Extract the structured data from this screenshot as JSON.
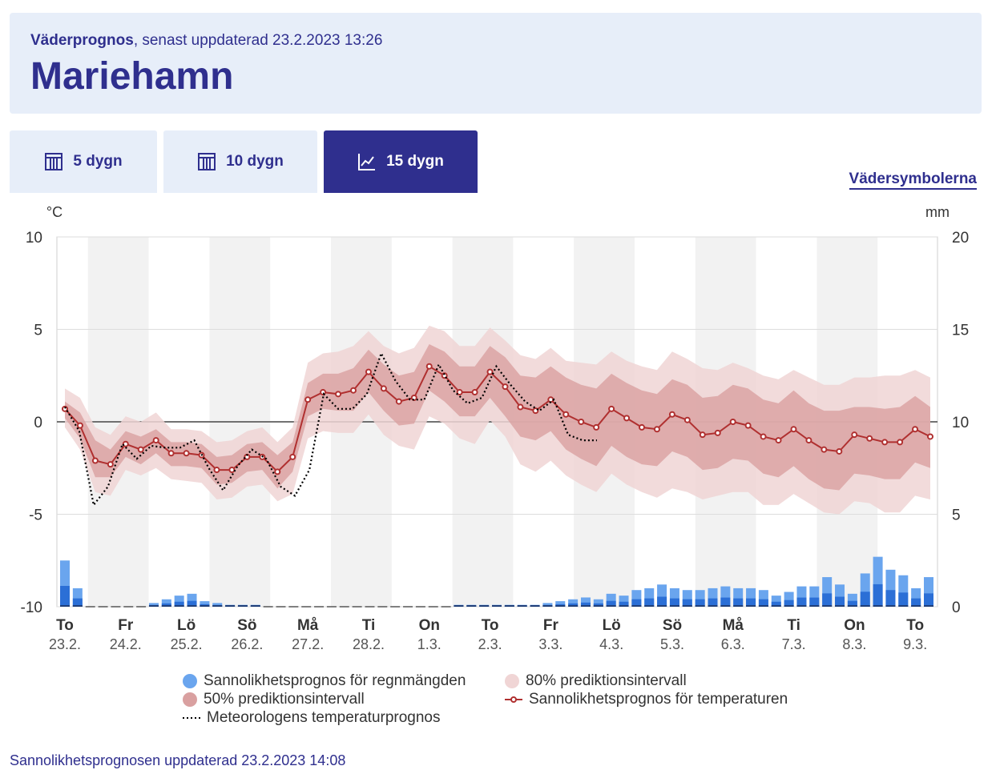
{
  "header": {
    "subtitle_bold": "Väderprognos",
    "subtitle_rest": ", senast uppdaterad 23.2.2023 13:26",
    "title": "Mariehamn"
  },
  "tabs": [
    {
      "label": "5 dygn",
      "icon": "calendar-icon",
      "active": false
    },
    {
      "label": "10 dygn",
      "icon": "calendar-icon",
      "active": false
    },
    {
      "label": "15 dygn",
      "icon": "line-chart-icon",
      "active": true
    }
  ],
  "symbols_link": "Vädersymbolerna",
  "legend": {
    "rain": "Sannolikhetsprognos för regnmängden",
    "p80": "80% prediktionsintervall",
    "p50": "50% prediktionsintervall",
    "prob_temp": "Sannolikhetsprognos för temperaturen",
    "met_temp": "Meteorologens temperaturprognos"
  },
  "footer": "Sannolikhetsprognosen uppdaterad 23.2.2023 14:08",
  "colors": {
    "accent": "#2f2f8e",
    "band80": "#f0d5d5",
    "band50": "#d9a0a0",
    "median": "#b03030",
    "rain_light": "#6aa5ee",
    "rain_mid": "#2b6fd6",
    "rain_dark": "#1f3f7a"
  },
  "chart_data": {
    "type": "line",
    "ylabel_left": "°C",
    "ylabel_right": "mm",
    "ylim_left": [
      -10,
      10
    ],
    "ylim_right": [
      0,
      20
    ],
    "yticks_left": [
      "10",
      "5",
      "0",
      "-5",
      "-10"
    ],
    "yticks_right": [
      "20",
      "15",
      "10",
      "5",
      "0"
    ],
    "days": [
      {
        "name": "To",
        "date": "23.2."
      },
      {
        "name": "Fr",
        "date": "24.2."
      },
      {
        "name": "Lö",
        "date": "25.2."
      },
      {
        "name": "Sö",
        "date": "26.2."
      },
      {
        "name": "Må",
        "date": "27.2."
      },
      {
        "name": "Ti",
        "date": "28.2."
      },
      {
        "name": "On",
        "date": "1.3."
      },
      {
        "name": "To",
        "date": "2.3."
      },
      {
        "name": "Fr",
        "date": "3.3."
      },
      {
        "name": "Lö",
        "date": "4.3."
      },
      {
        "name": "Sö",
        "date": "5.3."
      },
      {
        "name": "Må",
        "date": "6.3."
      },
      {
        "name": "Ti",
        "date": "7.3."
      },
      {
        "name": "On",
        "date": "8.3."
      },
      {
        "name": "To",
        "date": "9.3."
      }
    ],
    "median_temp": [
      0.7,
      -0.2,
      -2.1,
      -2.3,
      -1.2,
      -1.5,
      -1.0,
      -1.7,
      -1.7,
      -1.8,
      -2.6,
      -2.6,
      -1.9,
      -1.9,
      -2.7,
      -1.9,
      1.2,
      1.6,
      1.5,
      1.7,
      2.7,
      1.8,
      1.1,
      1.3,
      3.0,
      2.5,
      1.6,
      1.6,
      2.7,
      1.9,
      0.8,
      0.6,
      1.2,
      0.4,
      0.0,
      -0.3,
      0.7,
      0.2,
      -0.3,
      -0.4,
      0.4,
      0.1,
      -0.7,
      -0.6,
      0.0,
      -0.2,
      -0.8,
      -1.0,
      -0.4,
      -1.0,
      -1.5,
      -1.6,
      -0.7,
      -0.9,
      -1.1,
      -1.1,
      -0.4,
      -0.8
    ],
    "band50": {
      "upper": [
        1.1,
        0.5,
        -1.0,
        -1.5,
        -0.5,
        -0.8,
        -0.4,
        -1.1,
        -1.1,
        -1.2,
        -1.9,
        -1.8,
        -1.2,
        -1.1,
        -1.8,
        -1.1,
        2.1,
        2.6,
        2.6,
        2.9,
        3.9,
        3.1,
        2.5,
        2.7,
        4.2,
        3.8,
        3.0,
        3.0,
        4.1,
        3.5,
        2.5,
        2.4,
        3.0,
        2.4,
        2.0,
        1.8,
        2.6,
        2.1,
        1.7,
        1.5,
        2.3,
        2.0,
        1.3,
        1.4,
        2.0,
        1.8,
        1.2,
        1.0,
        1.7,
        1.0,
        0.6,
        0.6,
        0.8,
        0.8,
        0.7,
        0.8,
        1.4,
        0.8
      ],
      "lower": [
        0.2,
        -0.9,
        -3.0,
        -3.0,
        -1.9,
        -2.3,
        -1.7,
        -2.4,
        -2.4,
        -2.5,
        -3.4,
        -3.3,
        -2.7,
        -2.6,
        -3.6,
        -2.7,
        0.3,
        0.7,
        0.6,
        0.6,
        1.6,
        0.6,
        -0.2,
        -0.1,
        1.7,
        1.1,
        0.3,
        0.3,
        1.3,
        0.3,
        -0.8,
        -1.0,
        -0.5,
        -1.5,
        -2.0,
        -2.4,
        -1.3,
        -1.9,
        -2.3,
        -2.4,
        -1.6,
        -1.9,
        -2.6,
        -2.5,
        -2.0,
        -2.1,
        -2.8,
        -3.0,
        -2.4,
        -3.1,
        -3.6,
        -3.7,
        -2.8,
        -2.9,
        -3.1,
        -3.1,
        -2.2,
        -2.5
      ]
    },
    "band80": {
      "upper": [
        1.8,
        1.3,
        -0.3,
        -0.7,
        0.3,
        0.0,
        0.5,
        -0.4,
        -0.4,
        -0.5,
        -1.1,
        -1.0,
        -0.5,
        -0.3,
        -1.1,
        -0.3,
        3.2,
        3.7,
        3.8,
        4.1,
        4.9,
        4.1,
        3.7,
        4.0,
        5.2,
        4.9,
        4.1,
        4.1,
        5.1,
        4.4,
        3.6,
        3.4,
        4.0,
        3.3,
        3.2,
        3.1,
        3.8,
        3.3,
        3.0,
        2.8,
        3.8,
        3.4,
        2.9,
        2.8,
        3.2,
        2.9,
        2.5,
        2.3,
        2.8,
        2.4,
        2.0,
        2.0,
        2.4,
        2.4,
        2.5,
        2.5,
        2.8,
        2.4
      ],
      "lower": [
        -0.3,
        -1.5,
        -3.8,
        -4.0,
        -2.6,
        -2.9,
        -2.5,
        -3.1,
        -3.2,
        -3.3,
        -4.2,
        -4.1,
        -3.5,
        -3.4,
        -4.3,
        -3.9,
        -0.9,
        -0.5,
        -0.6,
        -0.6,
        0.4,
        -0.7,
        -1.3,
        -1.5,
        0.3,
        -0.1,
        -0.9,
        -1.2,
        0.1,
        -0.8,
        -2.3,
        -2.7,
        -2.1,
        -2.9,
        -3.4,
        -3.8,
        -2.8,
        -3.4,
        -3.8,
        -4.1,
        -3.6,
        -3.8,
        -4.2,
        -4.0,
        -3.8,
        -3.8,
        -4.5,
        -4.5,
        -3.9,
        -4.4,
        -4.9,
        -5.0,
        -4.3,
        -4.4,
        -4.9,
        -4.9,
        -4.0,
        -4.2
      ]
    },
    "met_temp": [
      0.8,
      -0.5,
      -4.5,
      -3.5,
      -1.2,
      -2.0,
      -1.3,
      -1.4,
      -1.4,
      -1.0,
      -2.5,
      -3.7,
      -2.4,
      -1.5,
      -2.0,
      -3.5,
      -4.0,
      -2.6,
      1.5,
      0.7,
      0.7,
      1.5,
      3.7,
      2.2,
      1.2,
      1.2,
      3.1,
      1.7,
      1.0,
      1.3,
      3.0,
      2.0,
      1.1,
      0.6,
      1.2,
      -0.7,
      -1.0,
      -1.0
    ],
    "rain_mm": [
      2.5,
      1.0,
      0.0,
      0.0,
      0.0,
      0.0,
      0.0,
      0.2,
      0.4,
      0.6,
      0.7,
      0.3,
      0.2,
      0.1,
      0.1,
      0.1,
      0.0,
      0.0,
      0.0,
      0.0,
      0.0,
      0.0,
      0.0,
      0.0,
      0.0,
      0.0,
      0.0,
      0.0,
      0.0,
      0.0,
      0.0,
      0.1,
      0.1,
      0.1,
      0.1,
      0.1,
      0.1,
      0.1,
      0.2,
      0.3,
      0.4,
      0.5,
      0.4,
      0.7,
      0.6,
      0.9,
      1.0,
      1.2,
      1.0,
      0.9,
      0.9,
      1.0,
      1.1,
      1.0,
      1.0,
      0.9,
      0.6,
      0.8,
      1.1,
      1.1,
      1.6,
      1.2,
      0.7,
      1.8,
      2.7,
      2.0,
      1.7,
      1.0,
      1.6
    ]
  }
}
